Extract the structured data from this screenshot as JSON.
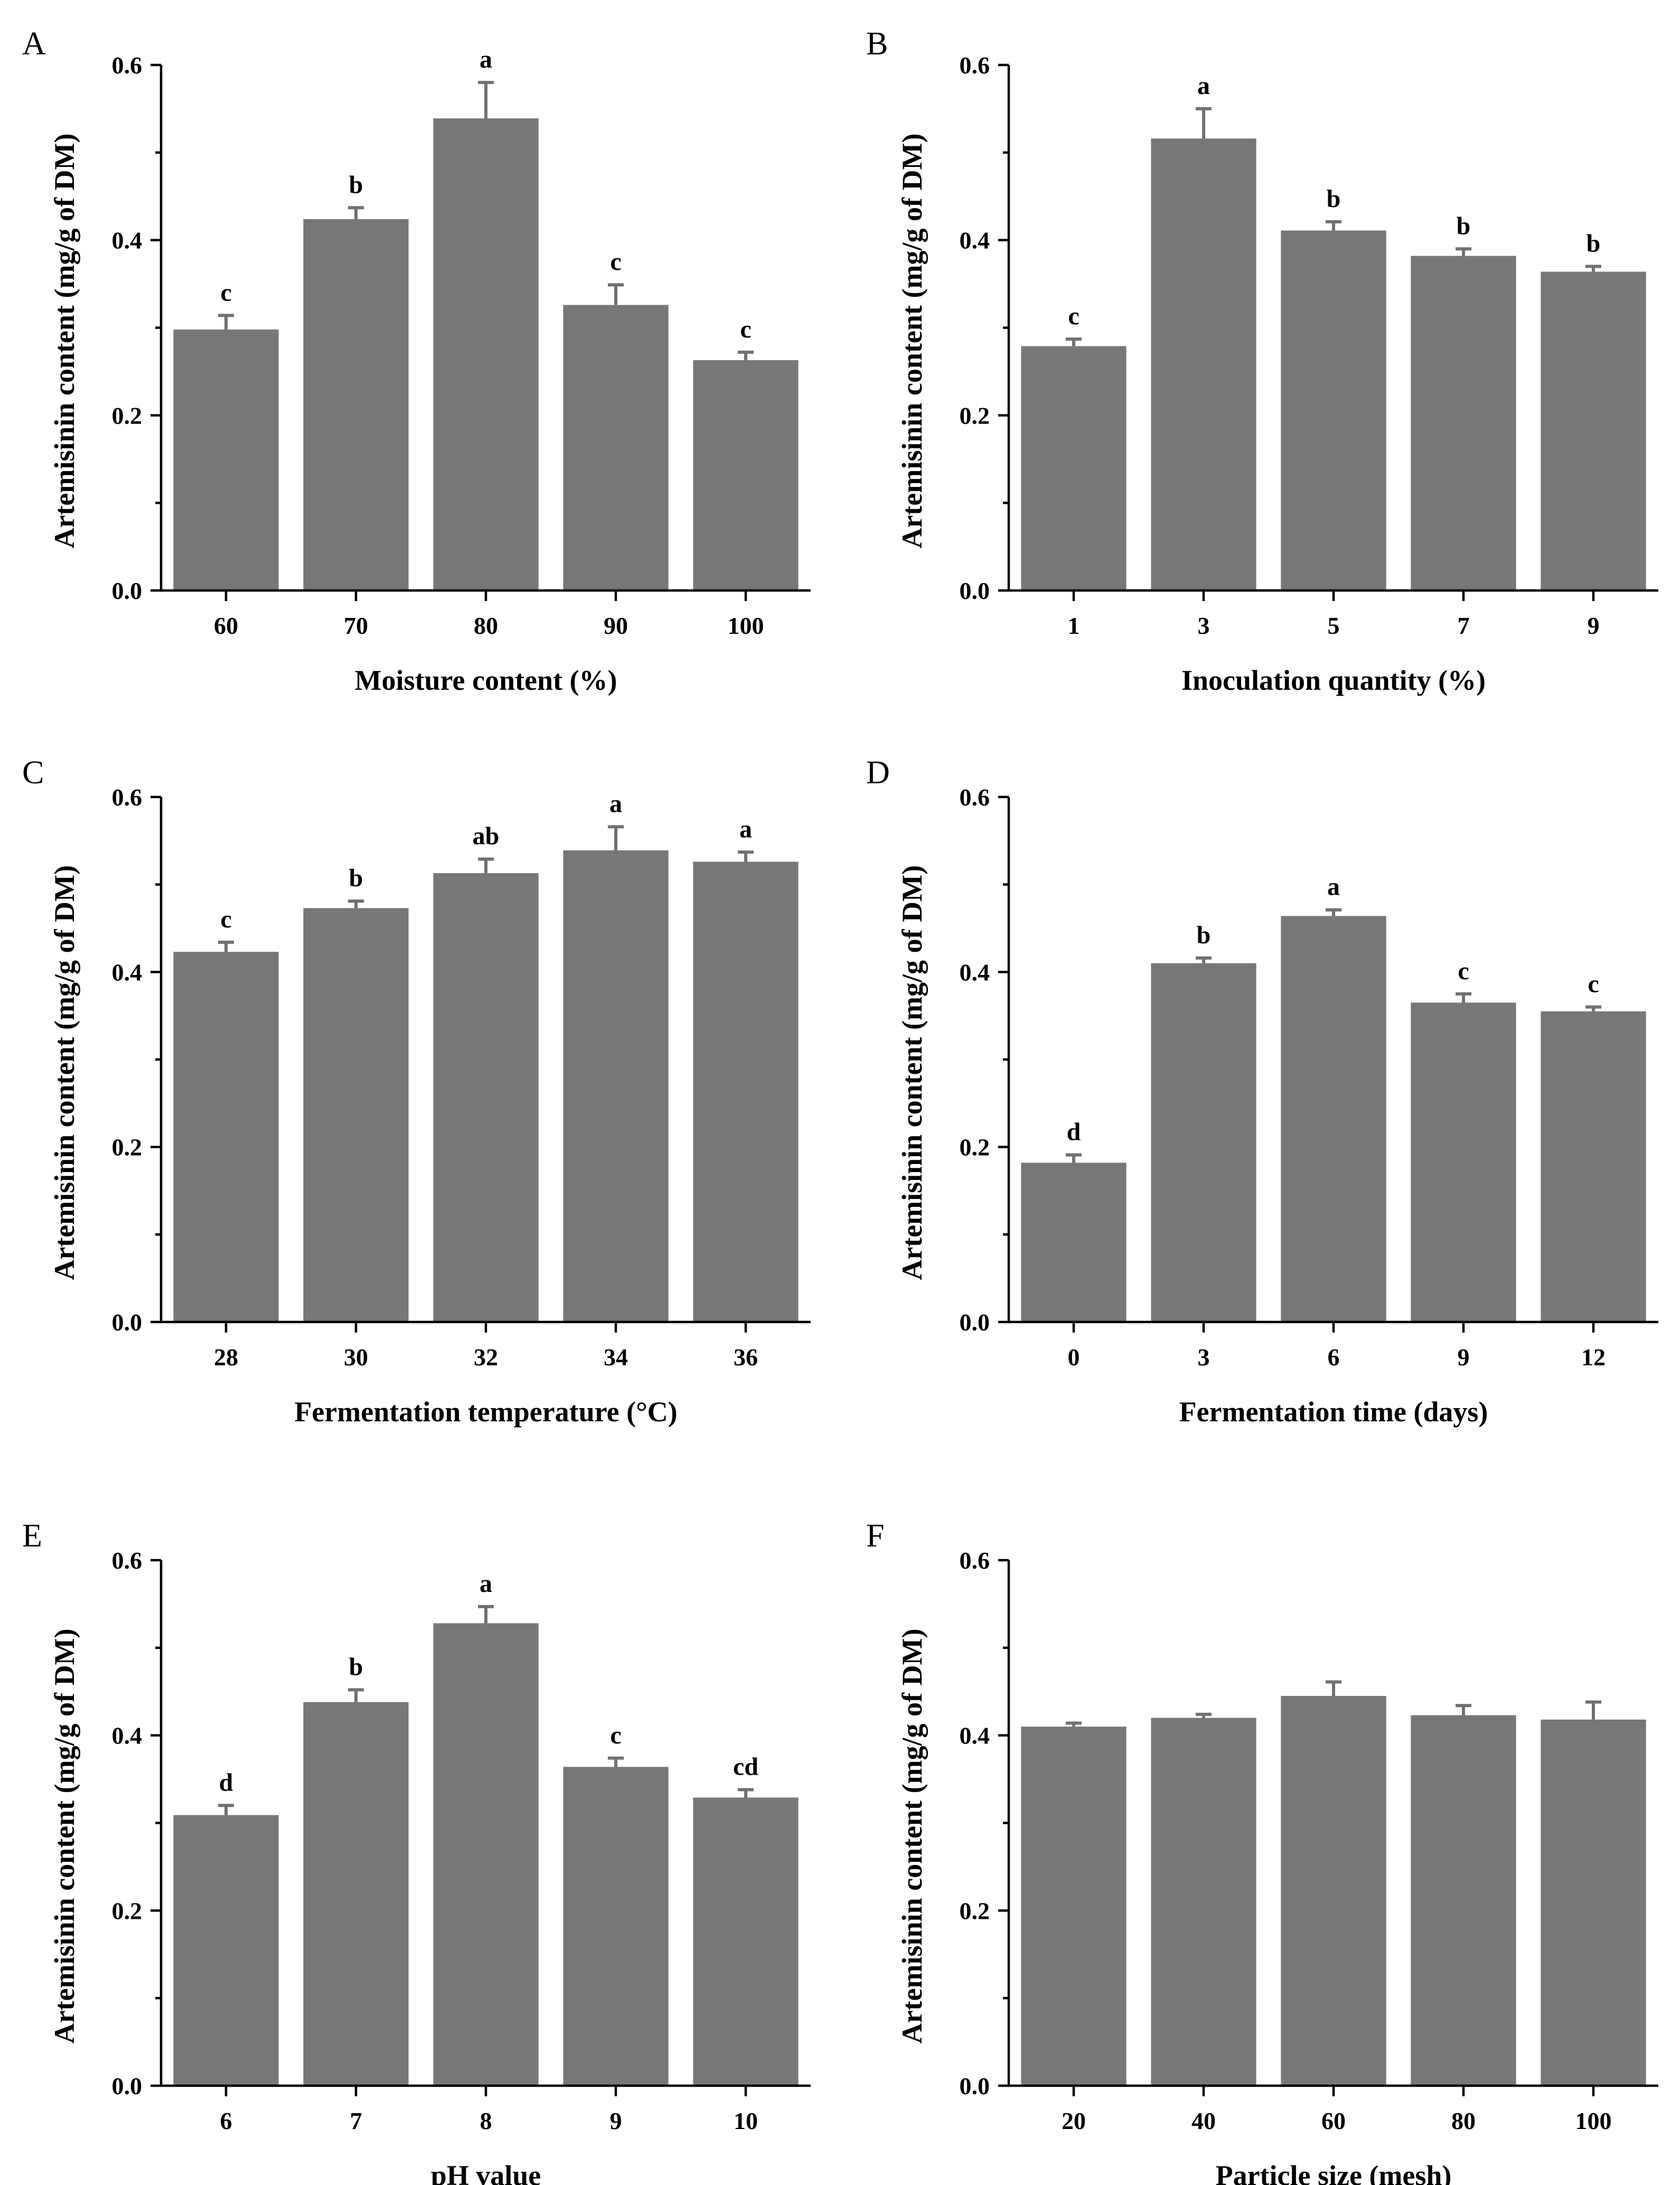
{
  "chart_data": [
    {
      "type": "bar",
      "panel": "A",
      "categories": [
        "60",
        "70",
        "80",
        "90",
        "100"
      ],
      "values": [
        0.298,
        0.424,
        0.539,
        0.326,
        0.263
      ],
      "errors": [
        0.016,
        0.013,
        0.041,
        0.023,
        0.009
      ],
      "labels": [
        "c",
        "b",
        "a",
        "c",
        "c"
      ],
      "xlabel": "Moisture content (%)",
      "ylabel": "Artemisinin content (mg/g of DM)",
      "ylim": [
        0,
        0.6
      ],
      "yticks": [
        "0.0",
        "0.2",
        "0.4",
        "0.6"
      ]
    },
    {
      "type": "bar",
      "panel": "B",
      "categories": [
        "1",
        "3",
        "5",
        "7",
        "9"
      ],
      "values": [
        0.279,
        0.516,
        0.411,
        0.382,
        0.364
      ],
      "errors": [
        0.008,
        0.034,
        0.01,
        0.008,
        0.006
      ],
      "labels": [
        "c",
        "a",
        "b",
        "b",
        "b"
      ],
      "xlabel": "Inoculation quantity (%)",
      "ylabel": "Artemisinin content (mg/g of DM)",
      "ylim": [
        0,
        0.6
      ],
      "yticks": [
        "0.0",
        "0.2",
        "0.4",
        "0.6"
      ]
    },
    {
      "type": "bar",
      "panel": "C",
      "categories": [
        "28",
        "30",
        "32",
        "34",
        "36"
      ],
      "values": [
        0.423,
        0.473,
        0.513,
        0.539,
        0.526
      ],
      "errors": [
        0.011,
        0.008,
        0.016,
        0.027,
        0.011
      ],
      "labels": [
        "c",
        "b",
        "ab",
        "a",
        "a"
      ],
      "xlabel": "Fermentation temperature (°C)",
      "ylabel": "Artemisinin content (mg/g of DM)",
      "ylim": [
        0,
        0.6
      ],
      "yticks": [
        "0.0",
        "0.2",
        "0.4",
        "0.6"
      ]
    },
    {
      "type": "bar",
      "panel": "D",
      "categories": [
        "0",
        "3",
        "6",
        "9",
        "12"
      ],
      "values": [
        0.182,
        0.41,
        0.464,
        0.365,
        0.355
      ],
      "errors": [
        0.009,
        0.006,
        0.007,
        0.01,
        0.005
      ],
      "labels": [
        "d",
        "b",
        "a",
        "c",
        "c"
      ],
      "xlabel": "Fermentation time (days)",
      "ylabel": "Artemisinin content (mg/g of DM)",
      "ylim": [
        0,
        0.6
      ],
      "yticks": [
        "0.0",
        "0.2",
        "0.4",
        "0.6"
      ]
    },
    {
      "type": "bar",
      "panel": "E",
      "categories": [
        "6",
        "7",
        "8",
        "9",
        "10"
      ],
      "values": [
        0.309,
        0.438,
        0.528,
        0.364,
        0.329
      ],
      "errors": [
        0.011,
        0.014,
        0.019,
        0.01,
        0.009
      ],
      "labels": [
        "d",
        "b",
        "a",
        "c",
        "cd"
      ],
      "xlabel": "pH value",
      "ylabel": "Artemisinin content (mg/g of DM)",
      "ylim": [
        0,
        0.6
      ],
      "yticks": [
        "0.0",
        "0.2",
        "0.4",
        "0.6"
      ]
    },
    {
      "type": "bar",
      "panel": "F",
      "categories": [
        "20",
        "40",
        "60",
        "80",
        "100"
      ],
      "values": [
        0.41,
        0.42,
        0.445,
        0.423,
        0.418
      ],
      "errors": [
        0.004,
        0.004,
        0.016,
        0.011,
        0.02
      ],
      "labels": [
        "",
        "",
        "",
        "",
        ""
      ],
      "xlabel": "Particle size (mesh)",
      "ylabel": "Artemisinin content (mg/g of DM)",
      "ylim": [
        0,
        0.6
      ],
      "yticks": [
        "0.0",
        "0.2",
        "0.4",
        "0.6"
      ]
    }
  ]
}
